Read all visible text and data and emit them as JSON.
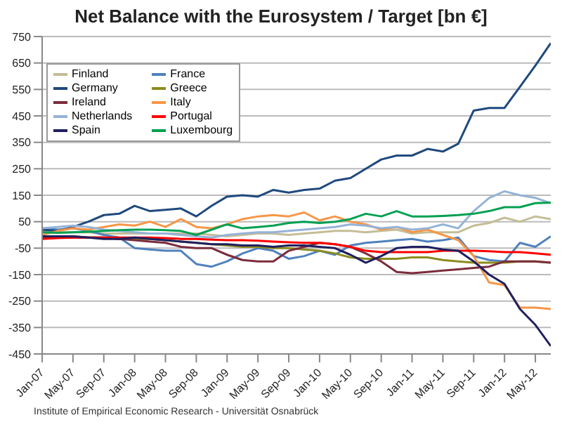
{
  "chart_data": {
    "type": "line",
    "title": "Net Balance with the Eurosystem / Target [bn €]",
    "x": [
      "2007-01",
      "2007-03",
      "2007-05",
      "2007-07",
      "2007-09",
      "2007-11",
      "2008-01",
      "2008-03",
      "2008-05",
      "2008-07",
      "2008-09",
      "2008-11",
      "2009-01",
      "2009-03",
      "2009-05",
      "2009-07",
      "2009-09",
      "2009-11",
      "2010-01",
      "2010-03",
      "2010-05",
      "2010-07",
      "2010-09",
      "2010-11",
      "2011-01",
      "2011-03",
      "2011-05",
      "2011-07",
      "2011-09",
      "2011-11",
      "2012-01",
      "2012-03",
      "2012-05",
      "2012-07"
    ],
    "series": [
      {
        "name": "Finland",
        "color": "#c4bd97",
        "values": [
          15,
          10,
          10,
          10,
          5,
          5,
          5,
          5,
          5,
          5,
          5,
          0,
          -5,
          0,
          5,
          5,
          0,
          5,
          10,
          15,
          15,
          10,
          15,
          20,
          5,
          10,
          10,
          10,
          35,
          45,
          65,
          50,
          70,
          60
        ]
      },
      {
        "name": "France",
        "color": "#4f81bd",
        "values": [
          25,
          20,
          25,
          15,
          0,
          -10,
          -50,
          -55,
          -60,
          -60,
          -110,
          -120,
          -100,
          -70,
          -50,
          -60,
          -90,
          -80,
          -60,
          -75,
          -40,
          -30,
          -25,
          -20,
          -15,
          -25,
          -20,
          -10,
          -80,
          -95,
          -100,
          -30,
          -45,
          -5
        ]
      },
      {
        "name": "Germany",
        "color": "#1f497d",
        "values": [
          20,
          15,
          30,
          50,
          75,
          80,
          110,
          90,
          95,
          100,
          70,
          110,
          145,
          150,
          145,
          170,
          160,
          170,
          175,
          205,
          215,
          250,
          285,
          300,
          300,
          325,
          315,
          345,
          470,
          480,
          480,
          560,
          640,
          725
        ]
      },
      {
        "name": "Greece",
        "color": "#8c8c1e",
        "values": [
          -5,
          -5,
          -5,
          -10,
          -10,
          -15,
          -15,
          -15,
          -20,
          -25,
          -30,
          -35,
          -40,
          -45,
          -45,
          -50,
          -50,
          -55,
          -60,
          -70,
          -85,
          -90,
          -90,
          -90,
          -85,
          -85,
          -95,
          -100,
          -105,
          -105,
          -105,
          -100,
          -100,
          -105
        ]
      },
      {
        "name": "Ireland",
        "color": "#7b2c3c",
        "values": [
          -10,
          -10,
          -10,
          -10,
          -10,
          -15,
          -20,
          -25,
          -30,
          -45,
          -50,
          -50,
          -75,
          -95,
          -100,
          -100,
          -60,
          -45,
          -30,
          -35,
          -45,
          -70,
          -100,
          -140,
          -145,
          -140,
          -135,
          -130,
          -125,
          -120,
          -100,
          -100,
          -100,
          -105
        ]
      },
      {
        "name": "Italy",
        "color": "#f79646",
        "values": [
          0,
          15,
          25,
          20,
          30,
          40,
          35,
          50,
          30,
          60,
          30,
          25,
          40,
          60,
          70,
          75,
          70,
          85,
          55,
          70,
          50,
          40,
          20,
          30,
          10,
          20,
          0,
          -20,
          -80,
          -180,
          -190,
          -275,
          -275,
          -280
        ]
      },
      {
        "name": "Netherlands",
        "color": "#95b3d7",
        "values": [
          25,
          30,
          35,
          30,
          20,
          15,
          10,
          5,
          5,
          0,
          -5,
          -10,
          0,
          5,
          10,
          10,
          15,
          20,
          25,
          30,
          40,
          35,
          25,
          30,
          20,
          25,
          40,
          25,
          90,
          140,
          165,
          150,
          140,
          120
        ]
      },
      {
        "name": "Portugal",
        "color": "#ff0000",
        "values": [
          -15,
          -12,
          -10,
          -10,
          -10,
          -10,
          -10,
          -10,
          -12,
          -15,
          -15,
          -18,
          -20,
          -20,
          -22,
          -25,
          -28,
          -30,
          -30,
          -35,
          -45,
          -60,
          -65,
          -65,
          -65,
          -65,
          -60,
          -60,
          -60,
          -62,
          -65,
          -65,
          -70,
          -75
        ]
      },
      {
        "name": "Spain",
        "color": "#1f1f5f",
        "values": [
          -5,
          -5,
          -5,
          -10,
          -15,
          -15,
          -10,
          -15,
          -20,
          -25,
          -30,
          -35,
          -35,
          -40,
          -40,
          -45,
          -40,
          -40,
          -45,
          -50,
          -75,
          -105,
          -80,
          -50,
          -45,
          -45,
          -55,
          -60,
          -100,
          -150,
          -185,
          -280,
          -340,
          -420
        ]
      },
      {
        "name": "Luxembourg",
        "color": "#00a050",
        "values": [
          10,
          8,
          10,
          12,
          15,
          18,
          20,
          20,
          18,
          15,
          0,
          20,
          40,
          25,
          30,
          35,
          45,
          50,
          45,
          50,
          60,
          80,
          70,
          90,
          70,
          70,
          72,
          75,
          80,
          90,
          105,
          105,
          120,
          122
        ]
      }
    ],
    "xlim": [
      "2007-01",
      "2012-07"
    ],
    "xticks": [
      {
        "value": "2007-01",
        "label": "Jan-07"
      },
      {
        "value": "2007-05",
        "label": "May-07"
      },
      {
        "value": "2007-09",
        "label": "Sep-07"
      },
      {
        "value": "2008-01",
        "label": "Jan-08"
      },
      {
        "value": "2008-05",
        "label": "May-08"
      },
      {
        "value": "2008-09",
        "label": "Sep-08"
      },
      {
        "value": "2009-01",
        "label": "Jan-09"
      },
      {
        "value": "2009-05",
        "label": "May-09"
      },
      {
        "value": "2009-09",
        "label": "Sep-09"
      },
      {
        "value": "2010-01",
        "label": "Jan-10"
      },
      {
        "value": "2010-05",
        "label": "May-10"
      },
      {
        "value": "2010-09",
        "label": "Sep-10"
      },
      {
        "value": "2011-01",
        "label": "Jan-11"
      },
      {
        "value": "2011-05",
        "label": "May-11"
      },
      {
        "value": "2011-09",
        "label": "Sep-11"
      },
      {
        "value": "2012-01",
        "label": "Jan-12"
      },
      {
        "value": "2012-05",
        "label": "May-12"
      }
    ],
    "ylim": [
      -450,
      750
    ],
    "yticks": [
      -450,
      -350,
      -250,
      -150,
      -50,
      50,
      150,
      250,
      350,
      450,
      550,
      650,
      750
    ],
    "grid": "y",
    "legend": "top left",
    "marker": "none",
    "line_style": "solid",
    "annotations": [
      "Institute of Empirical Economic Research - Universität Osnabrück"
    ]
  }
}
